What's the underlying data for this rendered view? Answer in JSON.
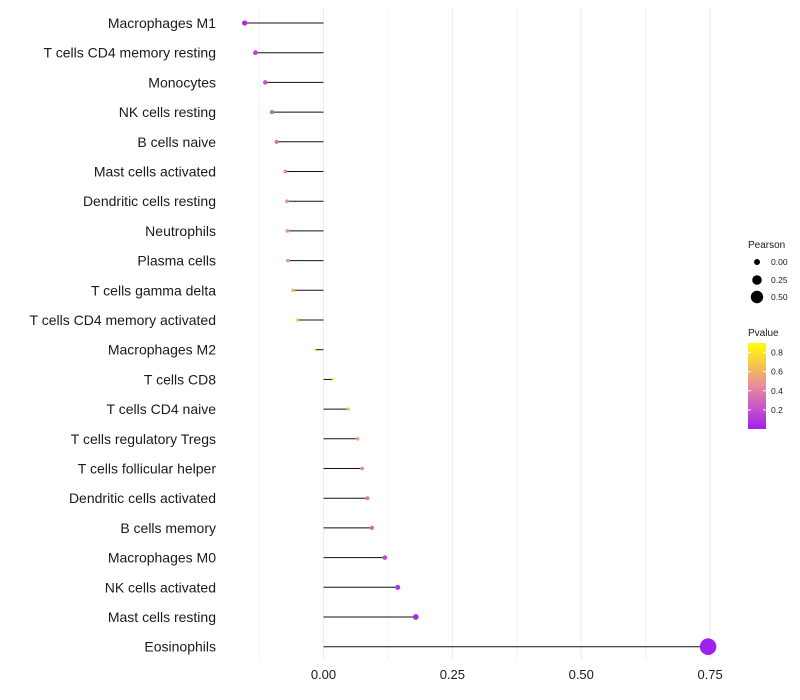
{
  "chart_data": {
    "type": "lollipop",
    "title": "",
    "xlabel": "",
    "ylabel": "",
    "xlim": [
      -0.153,
      0.76
    ],
    "x_ticks": [
      0.0,
      0.25,
      0.5,
      0.75
    ],
    "x_tick_labels": [
      "0.00",
      "0.25",
      "0.50",
      "0.75"
    ],
    "grid": true,
    "legend_position": "right",
    "categories": [
      "Macrophages M1",
      "T cells CD4 memory resting",
      "Monocytes",
      "NK cells resting",
      "B cells naive",
      "Mast cells activated",
      "Dendritic cells resting",
      "Neutrophils",
      "Plasma cells",
      "T cells gamma delta",
      "T cells CD4 memory activated",
      "Macrophages M2",
      "T cells CD8",
      "T cells CD4 naive",
      "T cells regulatory  Tregs ",
      "T cells follicular helper",
      "Dendritic cells activated",
      "B cells memory",
      "Macrophages M0",
      "NK cells activated",
      "Mast cells resting",
      "Eosinophils"
    ],
    "pearson": [
      -0.153,
      -0.132,
      -0.113,
      -0.1,
      -0.091,
      -0.074,
      -0.071,
      -0.07,
      -0.069,
      -0.059,
      -0.051,
      -0.017,
      0.019,
      0.048,
      0.066,
      0.075,
      0.085,
      0.094,
      0.119,
      0.144,
      0.179,
      0.746
    ],
    "pvalue": [
      0.06,
      0.17,
      0.22,
      0.28,
      0.32,
      0.45,
      0.48,
      0.49,
      0.5,
      0.6,
      0.68,
      0.89,
      0.83,
      0.67,
      0.55,
      0.47,
      0.37,
      0.3,
      0.18,
      0.1,
      0.03,
      0.0
    ],
    "size_legend": {
      "title": "Pearson",
      "values": [
        0.0,
        0.25,
        0.5
      ],
      "labels": [
        "0.00",
        "0.25",
        "0.50"
      ]
    },
    "color_legend": {
      "title": "Pvalue",
      "range": [
        0.0,
        0.9
      ],
      "ticks": [
        0.2,
        0.4,
        0.6,
        0.8
      ],
      "tick_labels": [
        "0.2",
        "0.4",
        "0.6",
        "0.8"
      ],
      "color_low": "#a020f0",
      "color_high": "#ffff00"
    }
  }
}
